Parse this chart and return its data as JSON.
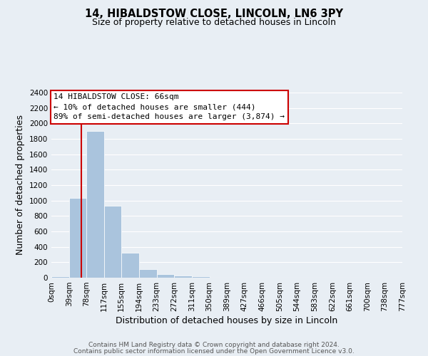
{
  "title": "14, HIBALDSTOW CLOSE, LINCOLN, LN6 3PY",
  "subtitle": "Size of property relative to detached houses in Lincoln",
  "xlabel": "Distribution of detached houses by size in Lincoln",
  "ylabel": "Number of detached properties",
  "bar_edges": [
    0,
    39,
    78,
    117,
    155,
    194,
    233,
    272,
    311,
    350,
    389,
    427,
    466,
    505,
    544,
    583,
    622,
    661,
    700,
    738,
    777
  ],
  "bar_labels": [
    "0sqm",
    "39sqm",
    "78sqm",
    "117sqm",
    "155sqm",
    "194sqm",
    "233sqm",
    "272sqm",
    "311sqm",
    "350sqm",
    "389sqm",
    "427sqm",
    "466sqm",
    "505sqm",
    "544sqm",
    "583sqm",
    "622sqm",
    "661sqm",
    "700sqm",
    "738sqm",
    "777sqm"
  ],
  "bar_heights": [
    20,
    1030,
    1900,
    930,
    320,
    110,
    50,
    30,
    20,
    0,
    0,
    0,
    0,
    0,
    0,
    0,
    0,
    0,
    0,
    0
  ],
  "bar_color": "#aac4dd",
  "bar_edge_color": "white",
  "property_line_x": 66,
  "property_line_color": "#cc0000",
  "ylim": [
    0,
    2400
  ],
  "yticks": [
    0,
    200,
    400,
    600,
    800,
    1000,
    1200,
    1400,
    1600,
    1800,
    2000,
    2200,
    2400
  ],
  "annotation_line1": "14 HIBALDSTOW CLOSE: 66sqm",
  "annotation_line2": "← 10% of detached houses are smaller (444)",
  "annotation_line3": "89% of semi-detached houses are larger (3,874) →",
  "annotation_box_color": "white",
  "annotation_box_edge_color": "#cc0000",
  "footer_line1": "Contains HM Land Registry data © Crown copyright and database right 2024.",
  "footer_line2": "Contains public sector information licensed under the Open Government Licence v3.0.",
  "background_color": "#e8eef4",
  "grid_color": "white",
  "title_fontsize": 10.5,
  "subtitle_fontsize": 9,
  "axis_label_fontsize": 9,
  "tick_fontsize": 7.5,
  "annotation_fontsize": 8,
  "footer_fontsize": 6.5
}
